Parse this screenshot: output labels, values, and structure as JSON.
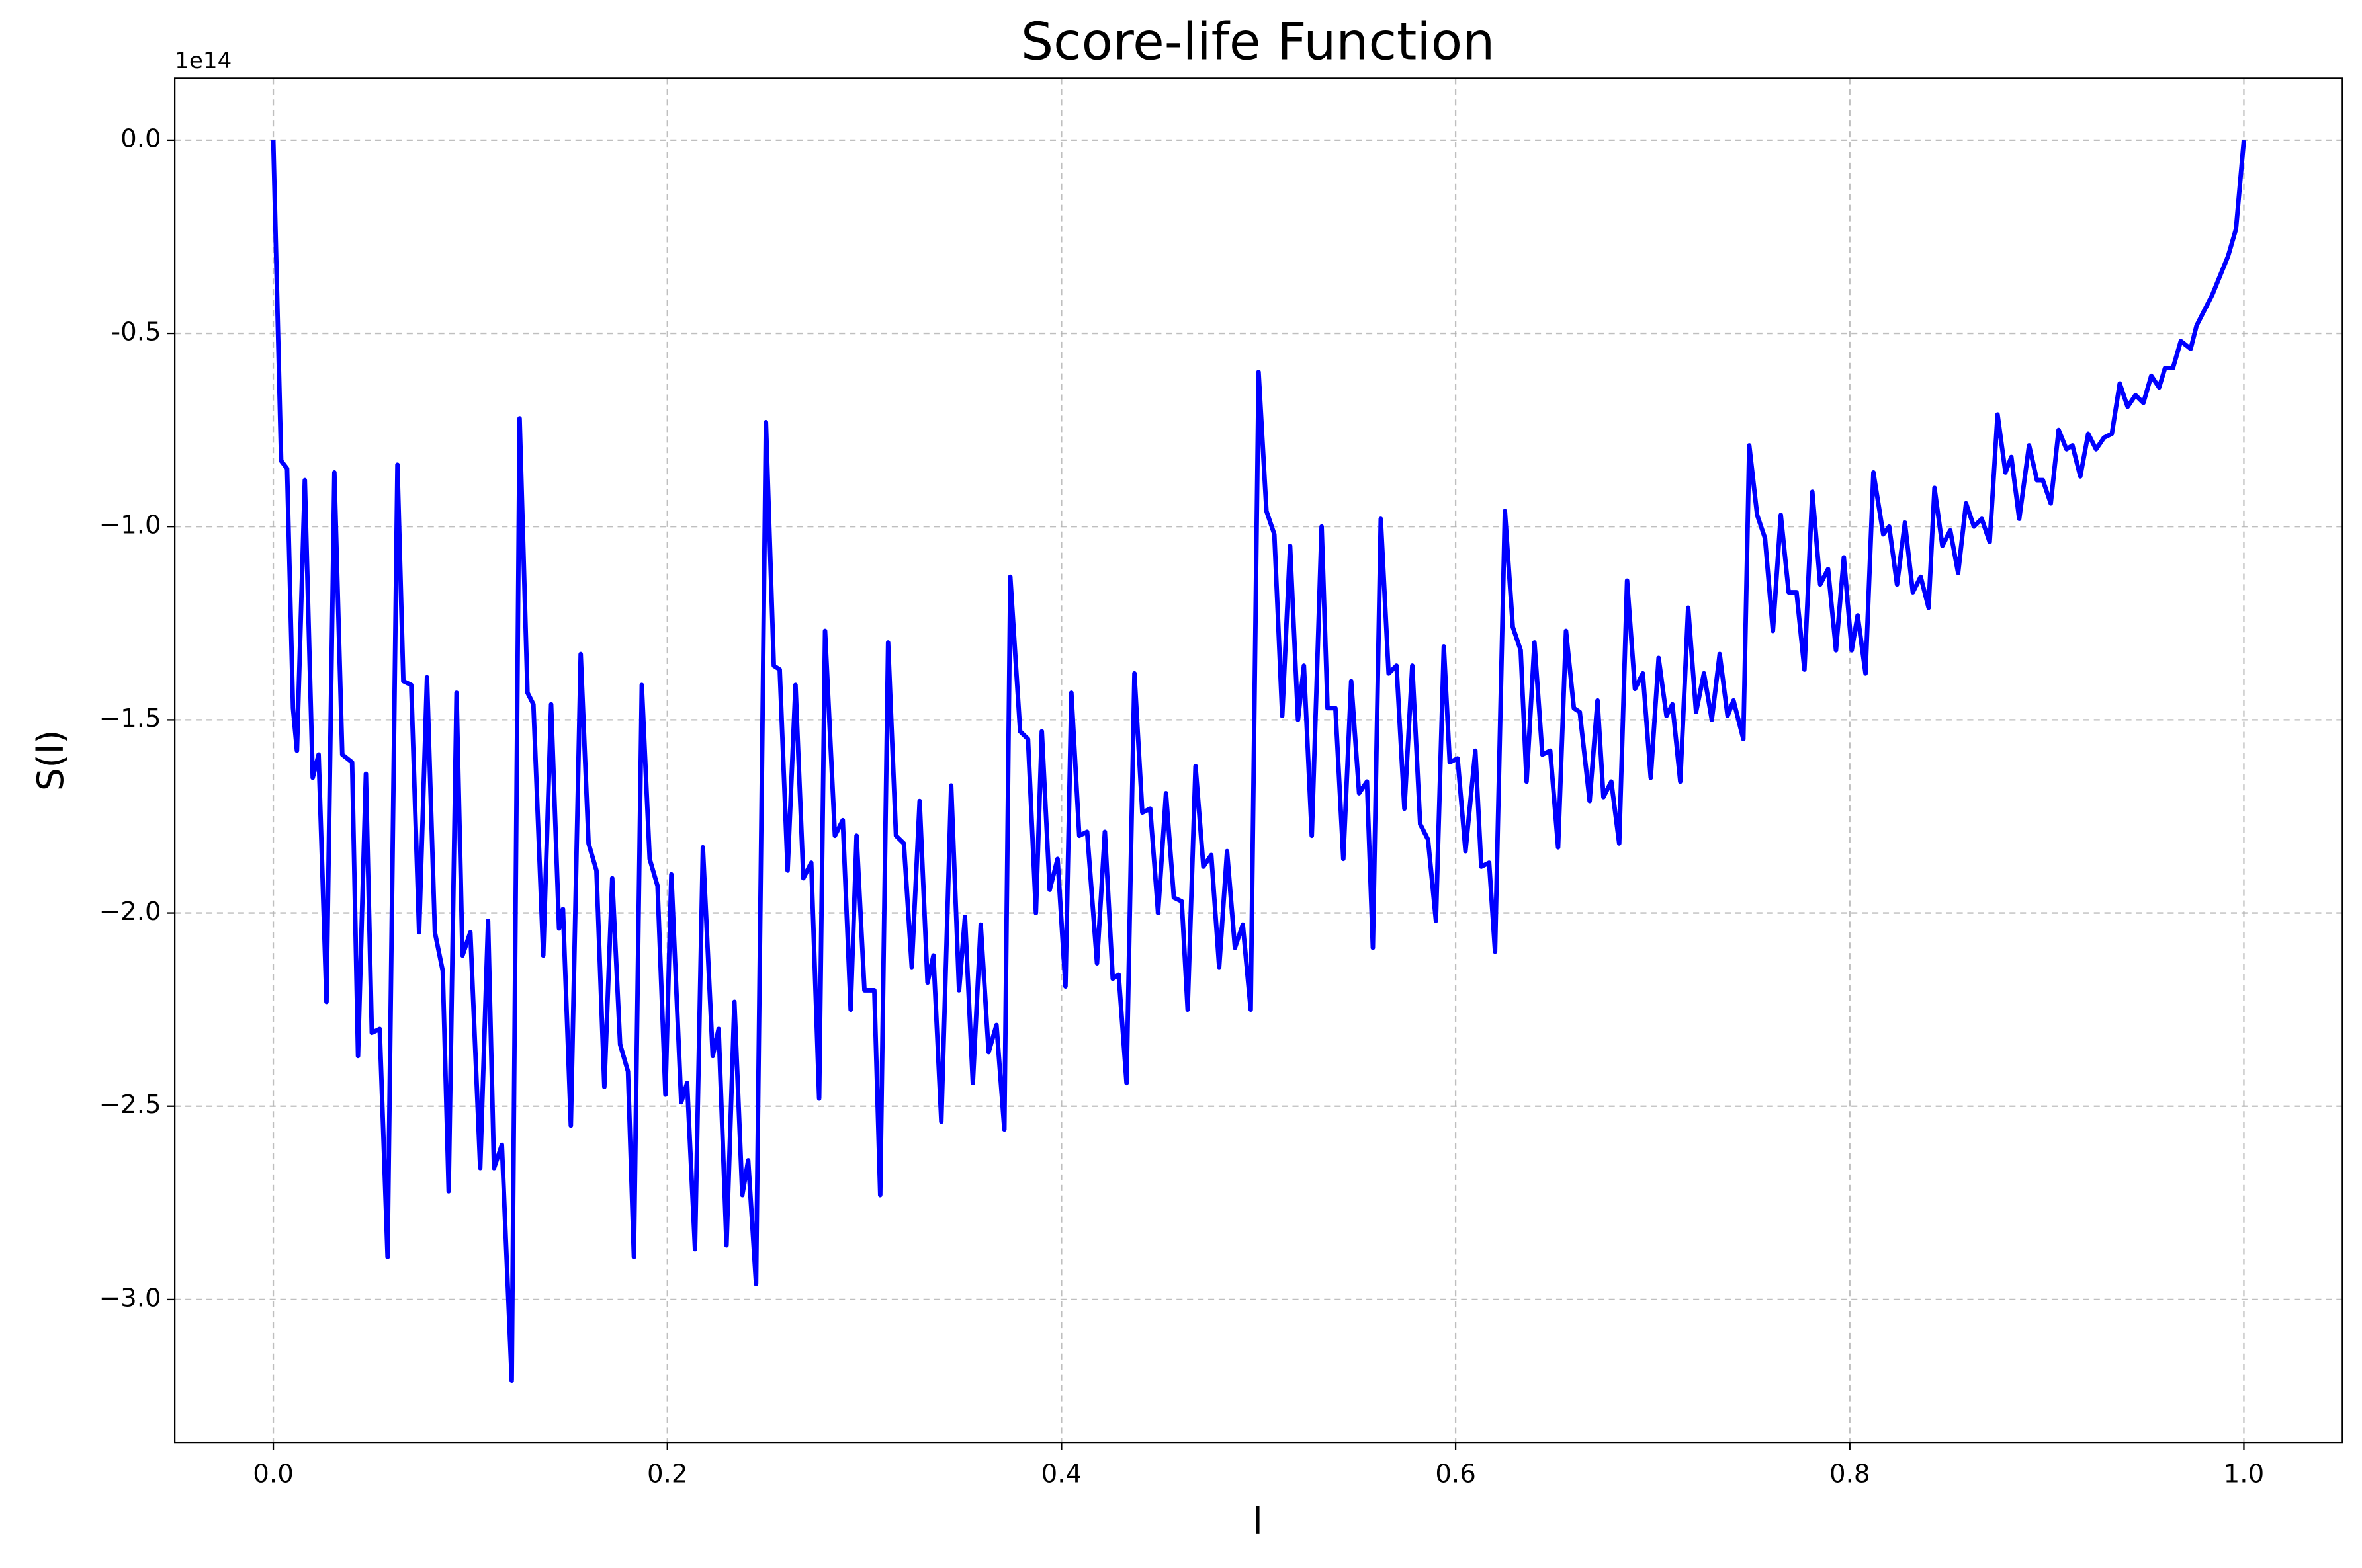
{
  "chart_data": {
    "type": "line",
    "title": "Score-life Function",
    "x_label": "l",
    "y_label": "S(l)",
    "y_offset_label": "1e14",
    "grid": true,
    "xlim": [
      -0.05,
      1.05
    ],
    "ylim": [
      -3.37,
      0.16
    ],
    "xticks": [
      {
        "value": 0,
        "label": "0.0"
      },
      0.2,
      0.4,
      0.6,
      0.8,
      {
        "value": 1,
        "label": "1.0"
      }
    ],
    "yticks": [
      {
        "value": 0,
        "label": "0.0"
      },
      -0.5,
      {
        "value": -1,
        "label": "−1.0"
      },
      {
        "value": -1.5,
        "label": "−1.5"
      },
      {
        "value": -2,
        "label": "−2.0"
      },
      {
        "value": -2.5,
        "label": "−2.5"
      },
      {
        "value": -3,
        "label": "−3.0"
      }
    ],
    "x": [
      0,
      0.004,
      0.007,
      0.01,
      0.012,
      0.016,
      0.02,
      0.023,
      0.027,
      0.031,
      0.035,
      0.04,
      0.043,
      0.047,
      0.05,
      0.054,
      0.058,
      0.063,
      0.066,
      0.07,
      0.074,
      0.078,
      0.082,
      0.086,
      0.089,
      0.093,
      0.096,
      0.1,
      0.105,
      0.109,
      0.112,
      0.116,
      0.121,
      0.125,
      0.129,
      0.132,
      0.137,
      0.141,
      0.145,
      0.147,
      0.151,
      0.156,
      0.16,
      0.164,
      0.168,
      0.172,
      0.176,
      0.18,
      0.183,
      0.187,
      0.191,
      0.195,
      0.199,
      0.202,
      0.207,
      0.21,
      0.214,
      0.218,
      0.223,
      0.226,
      0.23,
      0.234,
      0.238,
      0.241,
      0.245,
      0.25,
      0.254,
      0.257,
      0.261,
      0.265,
      0.269,
      0.273,
      0.277,
      0.28,
      0.285,
      0.289,
      0.293,
      0.296,
      0.3,
      0.305,
      0.308,
      0.312,
      0.316,
      0.32,
      0.324,
      0.328,
      0.332,
      0.335,
      0.339,
      0.344,
      0.348,
      0.351,
      0.355,
      0.359,
      0.363,
      0.367,
      0.371,
      0.374,
      0.379,
      0.383,
      0.387,
      0.39,
      0.394,
      0.398,
      0.402,
      0.405,
      0.409,
      0.413,
      0.418,
      0.422,
      0.426,
      0.429,
      0.433,
      0.437,
      0.441,
      0.445,
      0.449,
      0.453,
      0.457,
      0.461,
      0.464,
      0.468,
      0.472,
      0.476,
      0.48,
      0.484,
      0.488,
      0.492,
      0.496,
      0.5,
      0.504,
      0.508,
      0.512,
      0.516,
      0.52,
      0.523,
      0.527,
      0.532,
      0.535,
      0.539,
      0.543,
      0.547,
      0.551,
      0.555,
      0.558,
      0.562,
      0.566,
      0.57,
      0.574,
      0.578,
      0.582,
      0.586,
      0.59,
      0.594,
      0.597,
      0.601,
      0.605,
      0.61,
      0.613,
      0.617,
      0.62,
      0.625,
      0.629,
      0.633,
      0.636,
      0.64,
      0.644,
      0.648,
      0.652,
      0.656,
      0.66,
      0.663,
      0.668,
      0.672,
      0.675,
      0.679,
      0.683,
      0.687,
      0.691,
      0.695,
      0.699,
      0.703,
      0.707,
      0.71,
      0.714,
      0.718,
      0.722,
      0.726,
      0.73,
      0.734,
      0.738,
      0.741,
      0.746,
      0.749,
      0.753,
      0.757,
      0.761,
      0.765,
      0.769,
      0.773,
      0.777,
      0.781,
      0.785,
      0.789,
      0.793,
      0.797,
      0.801,
      0.804,
      0.808,
      0.812,
      0.817,
      0.82,
      0.824,
      0.828,
      0.832,
      0.836,
      0.84,
      0.843,
      0.847,
      0.851,
      0.855,
      0.859,
      0.863,
      0.867,
      0.871,
      0.875,
      0.879,
      0.882,
      0.886,
      0.891,
      0.895,
      0.898,
      0.902,
      0.906,
      0.91,
      0.913,
      0.917,
      0.921,
      0.925,
      0.929,
      0.933,
      0.937,
      0.941,
      0.945,
      0.949,
      0.953,
      0.957,
      0.96,
      0.964,
      0.968,
      0.973,
      0.976,
      0.98,
      0.984,
      0.988,
      0.992,
      0.996,
      1.0
    ],
    "series": [
      {
        "name": "S(l)",
        "color": "#0000ff",
        "values": [
          0,
          -0.83,
          -0.85,
          -1.47,
          -1.58,
          -0.88,
          -1.65,
          -1.59,
          -2.23,
          -0.86,
          -1.59,
          -1.61,
          -2.37,
          -1.64,
          -2.31,
          -2.3,
          -2.89,
          -0.84,
          -1.4,
          -1.41,
          -2.05,
          -1.39,
          -2.05,
          -2.15,
          -2.72,
          -1.43,
          -2.11,
          -2.05,
          -2.66,
          -2.02,
          -2.66,
          -2.6,
          -3.21,
          -0.72,
          -1.43,
          -1.46,
          -2.11,
          -1.46,
          -2.04,
          -1.99,
          -2.55,
          -1.33,
          -1.82,
          -1.89,
          -2.45,
          -1.91,
          -2.34,
          -2.41,
          -2.89,
          -1.41,
          -1.86,
          -1.93,
          -2.47,
          -1.9,
          -2.49,
          -2.44,
          -2.87,
          -1.83,
          -2.37,
          -2.3,
          -2.86,
          -2.23,
          -2.73,
          -2.64,
          -2.96,
          -0.73,
          -1.36,
          -1.37,
          -1.89,
          -1.41,
          -1.91,
          -1.87,
          -2.48,
          -1.27,
          -1.8,
          -1.76,
          -2.25,
          -1.8,
          -2.2,
          -2.2,
          -2.73,
          -1.3,
          -1.8,
          -1.82,
          -2.14,
          -1.71,
          -2.18,
          -2.11,
          -2.54,
          -1.67,
          -2.2,
          -2.01,
          -2.44,
          -2.03,
          -2.36,
          -2.29,
          -2.56,
          -1.13,
          -1.53,
          -1.55,
          -2.0,
          -1.53,
          -1.94,
          -1.86,
          -2.19,
          -1.43,
          -1.8,
          -1.79,
          -2.13,
          -1.79,
          -2.17,
          -2.16,
          -2.44,
          -1.38,
          -1.74,
          -1.73,
          -2.0,
          -1.69,
          -1.96,
          -1.97,
          -2.25,
          -1.62,
          -1.88,
          -1.85,
          -2.14,
          -1.84,
          -2.09,
          -2.03,
          -2.25,
          -0.6,
          -0.96,
          -1.02,
          -1.49,
          -1.05,
          -1.5,
          -1.36,
          -1.8,
          -1.0,
          -1.47,
          -1.47,
          -1.86,
          -1.4,
          -1.69,
          -1.66,
          -2.09,
          -0.98,
          -1.38,
          -1.36,
          -1.73,
          -1.36,
          -1.77,
          -1.81,
          -2.02,
          -1.31,
          -1.61,
          -1.6,
          -1.84,
          -1.58,
          -1.88,
          -1.87,
          -2.1,
          -0.96,
          -1.26,
          -1.32,
          -1.66,
          -1.3,
          -1.59,
          -1.58,
          -1.83,
          -1.27,
          -1.47,
          -1.48,
          -1.71,
          -1.45,
          -1.7,
          -1.66,
          -1.82,
          -1.14,
          -1.42,
          -1.38,
          -1.65,
          -1.34,
          -1.49,
          -1.46,
          -1.66,
          -1.21,
          -1.48,
          -1.38,
          -1.5,
          -1.33,
          -1.49,
          -1.45,
          -1.55,
          -0.79,
          -0.97,
          -1.03,
          -1.27,
          -0.97,
          -1.17,
          -1.17,
          -1.37,
          -0.91,
          -1.15,
          -1.11,
          -1.32,
          -1.08,
          -1.32,
          -1.23,
          -1.38,
          -0.86,
          -1.02,
          -1.0,
          -1.15,
          -0.99,
          -1.17,
          -1.13,
          -1.21,
          -0.9,
          -1.05,
          -1.01,
          -1.12,
          -0.94,
          -1.0,
          -0.98,
          -1.04,
          -0.71,
          -0.86,
          -0.82,
          -0.98,
          -0.79,
          -0.88,
          -0.88,
          -0.94,
          -0.75,
          -0.8,
          -0.79,
          -0.87,
          -0.76,
          -0.8,
          -0.77,
          -0.76,
          -0.63,
          -0.69,
          -0.66,
          -0.68,
          -0.61,
          -0.64,
          -0.59,
          -0.59,
          -0.52,
          -0.54,
          -0.48,
          -0.44,
          -0.4,
          -0.35,
          -0.3,
          -0.23,
          0
        ]
      }
    ]
  }
}
